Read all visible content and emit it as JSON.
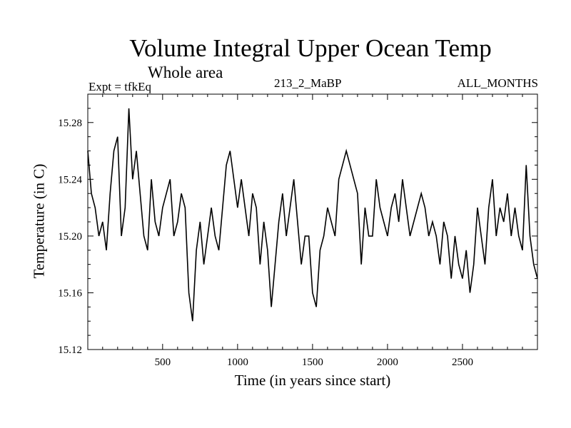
{
  "chart_data": {
    "type": "line",
    "title": "Volume Integral Upper Ocean Temp",
    "subtitle": "Whole area",
    "experiment": "Expt = tfkEq",
    "run": "213_2_MaBP",
    "months": "ALL_MONTHS",
    "xlabel": "Time (in years since start)",
    "ylabel": "Temperature (in C)",
    "xlim": [
      1,
      3000
    ],
    "ylim": [
      15.12,
      15.3
    ],
    "x_ticks": [
      500,
      1000,
      1500,
      2000,
      2500
    ],
    "y_ticks": [
      "15.12",
      "15.16",
      "15.20",
      "15.24",
      "15.28"
    ],
    "grid": false,
    "series": [
      {
        "x": [
          1,
          25,
          50,
          75,
          100,
          125,
          150,
          175,
          200,
          225,
          250,
          275,
          300,
          325,
          350,
          375,
          400,
          425,
          450,
          475,
          500,
          525,
          550,
          575,
          600,
          625,
          650,
          675,
          700,
          725,
          750,
          775,
          800,
          825,
          850,
          875,
          900,
          925,
          950,
          975,
          1000,
          1025,
          1050,
          1075,
          1100,
          1125,
          1150,
          1175,
          1200,
          1225,
          1250,
          1275,
          1300,
          1325,
          1350,
          1375,
          1400,
          1425,
          1450,
          1475,
          1500,
          1525,
          1550,
          1575,
          1600,
          1625,
          1650,
          1675,
          1700,
          1725,
          1750,
          1775,
          1800,
          1825,
          1850,
          1875,
          1900,
          1925,
          1950,
          1975,
          2000,
          2025,
          2050,
          2075,
          2100,
          2125,
          2150,
          2175,
          2200,
          2225,
          2250,
          2275,
          2300,
          2325,
          2350,
          2375,
          2400,
          2425,
          2450,
          2475,
          2500,
          2525,
          2550,
          2575,
          2600,
          2625,
          2650,
          2675,
          2700,
          2725,
          2750,
          2775,
          2800,
          2825,
          2850,
          2875,
          2900,
          2925,
          2950,
          2975,
          3000
        ],
        "values": [
          15.26,
          15.23,
          15.22,
          15.2,
          15.21,
          15.19,
          15.23,
          15.26,
          15.27,
          15.2,
          15.22,
          15.29,
          15.24,
          15.26,
          15.23,
          15.2,
          15.19,
          15.24,
          15.21,
          15.2,
          15.22,
          15.23,
          15.24,
          15.2,
          15.21,
          15.23,
          15.22,
          15.16,
          15.14,
          15.19,
          15.21,
          15.18,
          15.2,
          15.22,
          15.2,
          15.19,
          15.22,
          15.25,
          15.26,
          15.24,
          15.22,
          15.24,
          15.22,
          15.2,
          15.23,
          15.22,
          15.18,
          15.21,
          15.19,
          15.15,
          15.18,
          15.21,
          15.23,
          15.2,
          15.22,
          15.24,
          15.21,
          15.18,
          15.2,
          15.2,
          15.16,
          15.15,
          15.19,
          15.2,
          15.22,
          15.21,
          15.2,
          15.24,
          15.25,
          15.26,
          15.25,
          15.24,
          15.23,
          15.18,
          15.22,
          15.2,
          15.2,
          15.24,
          15.22,
          15.21,
          15.2,
          15.22,
          15.23,
          15.21,
          15.24,
          15.22,
          15.2,
          15.21,
          15.22,
          15.23,
          15.22,
          15.2,
          15.21,
          15.2,
          15.18,
          15.21,
          15.2,
          15.17,
          15.2,
          15.18,
          15.17,
          15.19,
          15.16,
          15.18,
          15.22,
          15.2,
          15.18,
          15.22,
          15.24,
          15.2,
          15.22,
          15.21,
          15.23,
          15.2,
          15.22,
          15.2,
          15.19,
          15.25,
          15.2,
          15.18,
          15.17
        ]
      }
    ]
  }
}
